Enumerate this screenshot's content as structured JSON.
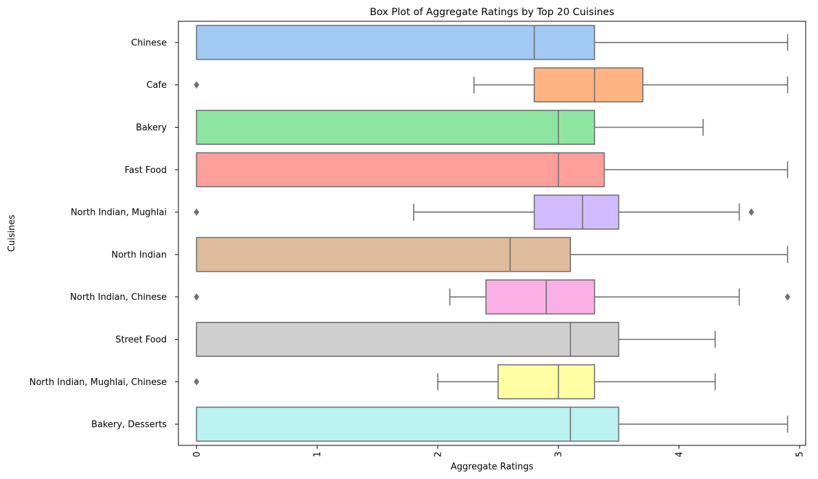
{
  "chart_data": {
    "type": "boxplot",
    "title": "Box Plot of Aggregate Ratings by Top 20 Cuisines",
    "xlabel": "Aggregate Ratings",
    "ylabel": "Cuisines",
    "xlim": [
      -0.15,
      5.05
    ],
    "xticks": [
      0,
      1,
      2,
      3,
      4,
      5
    ],
    "xtick_labels": [
      "0",
      "1",
      "2",
      "3",
      "4",
      "5"
    ],
    "xtick_rotation": 90,
    "grid": false,
    "orientation": "horizontal",
    "series": [
      {
        "category": "Chinese",
        "color": "#a1c9f4",
        "whisker_low": 0,
        "q1": 0,
        "median": 2.8,
        "q3": 3.3,
        "whisker_high": 4.9,
        "outliers": []
      },
      {
        "category": "Cafe",
        "color": "#ffb482",
        "whisker_low": 2.3,
        "q1": 2.8,
        "median": 3.3,
        "q3": 3.7,
        "whisker_high": 4.9,
        "outliers": [
          0
        ]
      },
      {
        "category": "Bakery",
        "color": "#8de5a1",
        "whisker_low": 0,
        "q1": 0,
        "median": 3.0,
        "q3": 3.3,
        "whisker_high": 4.2,
        "outliers": []
      },
      {
        "category": "Fast Food",
        "color": "#ff9f9b",
        "whisker_low": 0,
        "q1": 0,
        "median": 3.0,
        "q3": 3.38,
        "whisker_high": 4.9,
        "outliers": []
      },
      {
        "category": "North Indian, Mughlai",
        "color": "#d0bbff",
        "whisker_low": 1.8,
        "q1": 2.8,
        "median": 3.2,
        "q3": 3.5,
        "whisker_high": 4.5,
        "outliers": [
          0,
          4.6
        ]
      },
      {
        "category": "North Indian",
        "color": "#debb9b",
        "whisker_low": 0,
        "q1": 0,
        "median": 2.6,
        "q3": 3.1,
        "whisker_high": 4.9,
        "outliers": []
      },
      {
        "category": "North Indian, Chinese",
        "color": "#fab0e4",
        "whisker_low": 2.1,
        "q1": 2.4,
        "median": 2.9,
        "q3": 3.3,
        "whisker_high": 4.5,
        "outliers": [
          0,
          4.9
        ]
      },
      {
        "category": "Street Food",
        "color": "#cfcfcf",
        "whisker_low": 0,
        "q1": 0,
        "median": 3.1,
        "q3": 3.5,
        "whisker_high": 4.3,
        "outliers": []
      },
      {
        "category": "North Indian, Mughlai, Chinese",
        "color": "#fffea3",
        "whisker_low": 2.0,
        "q1": 2.5,
        "median": 3.0,
        "q3": 3.3,
        "whisker_high": 4.3,
        "outliers": [
          0
        ]
      },
      {
        "category": "Bakery, Desserts",
        "color": "#b9f2f0",
        "whisker_low": 0,
        "q1": 0,
        "median": 3.1,
        "q3": 3.5,
        "whisker_high": 4.9,
        "outliers": []
      }
    ],
    "box_edge_color": "#707070"
  }
}
